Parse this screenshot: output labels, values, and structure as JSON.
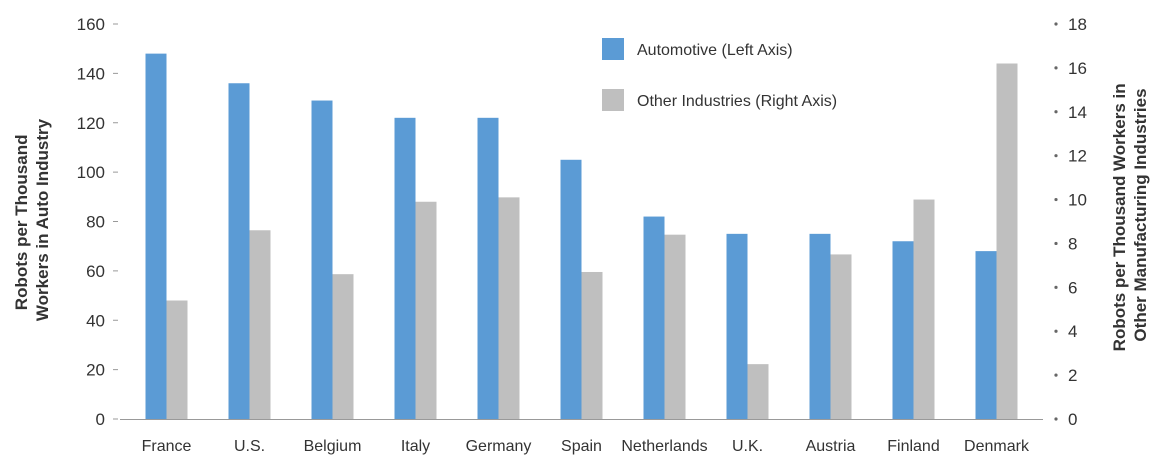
{
  "chart_data": {
    "type": "bar",
    "title": "",
    "xlabel": "",
    "ylabel_left": [
      "Robots per Thousand",
      "Workers in Auto Industry"
    ],
    "ylabel_right": [
      "Robots per Thousand Workers in",
      "Other Manufacturing Industries"
    ],
    "categories": [
      "France",
      "U.S.",
      "Belgium",
      "Italy",
      "Germany",
      "Spain",
      "Netherlands",
      "U.K.",
      "Austria",
      "Finland",
      "Denmark"
    ],
    "series": [
      {
        "name": "Automotive (Left Axis)",
        "axis": "left",
        "color": "#5b9bd5",
        "values": [
          148,
          136,
          129,
          122,
          122,
          105,
          82,
          75,
          75,
          72,
          68
        ]
      },
      {
        "name": "Other Industries (Right Axis)",
        "axis": "right",
        "color": "#bfbfbf",
        "values": [
          5.4,
          8.6,
          6.6,
          9.9,
          10.1,
          6.7,
          8.4,
          2.5,
          7.5,
          10.0,
          16.2
        ]
      }
    ],
    "ylim_left": [
      0,
      160
    ],
    "yticks_left": [
      0,
      20,
      40,
      60,
      80,
      100,
      120,
      140,
      160
    ],
    "ylim_right": [
      0,
      18
    ],
    "yticks_right": [
      0,
      2,
      4,
      6,
      8,
      10,
      12,
      14,
      16,
      18
    ],
    "grid": false,
    "legend_position": "top-center"
  }
}
